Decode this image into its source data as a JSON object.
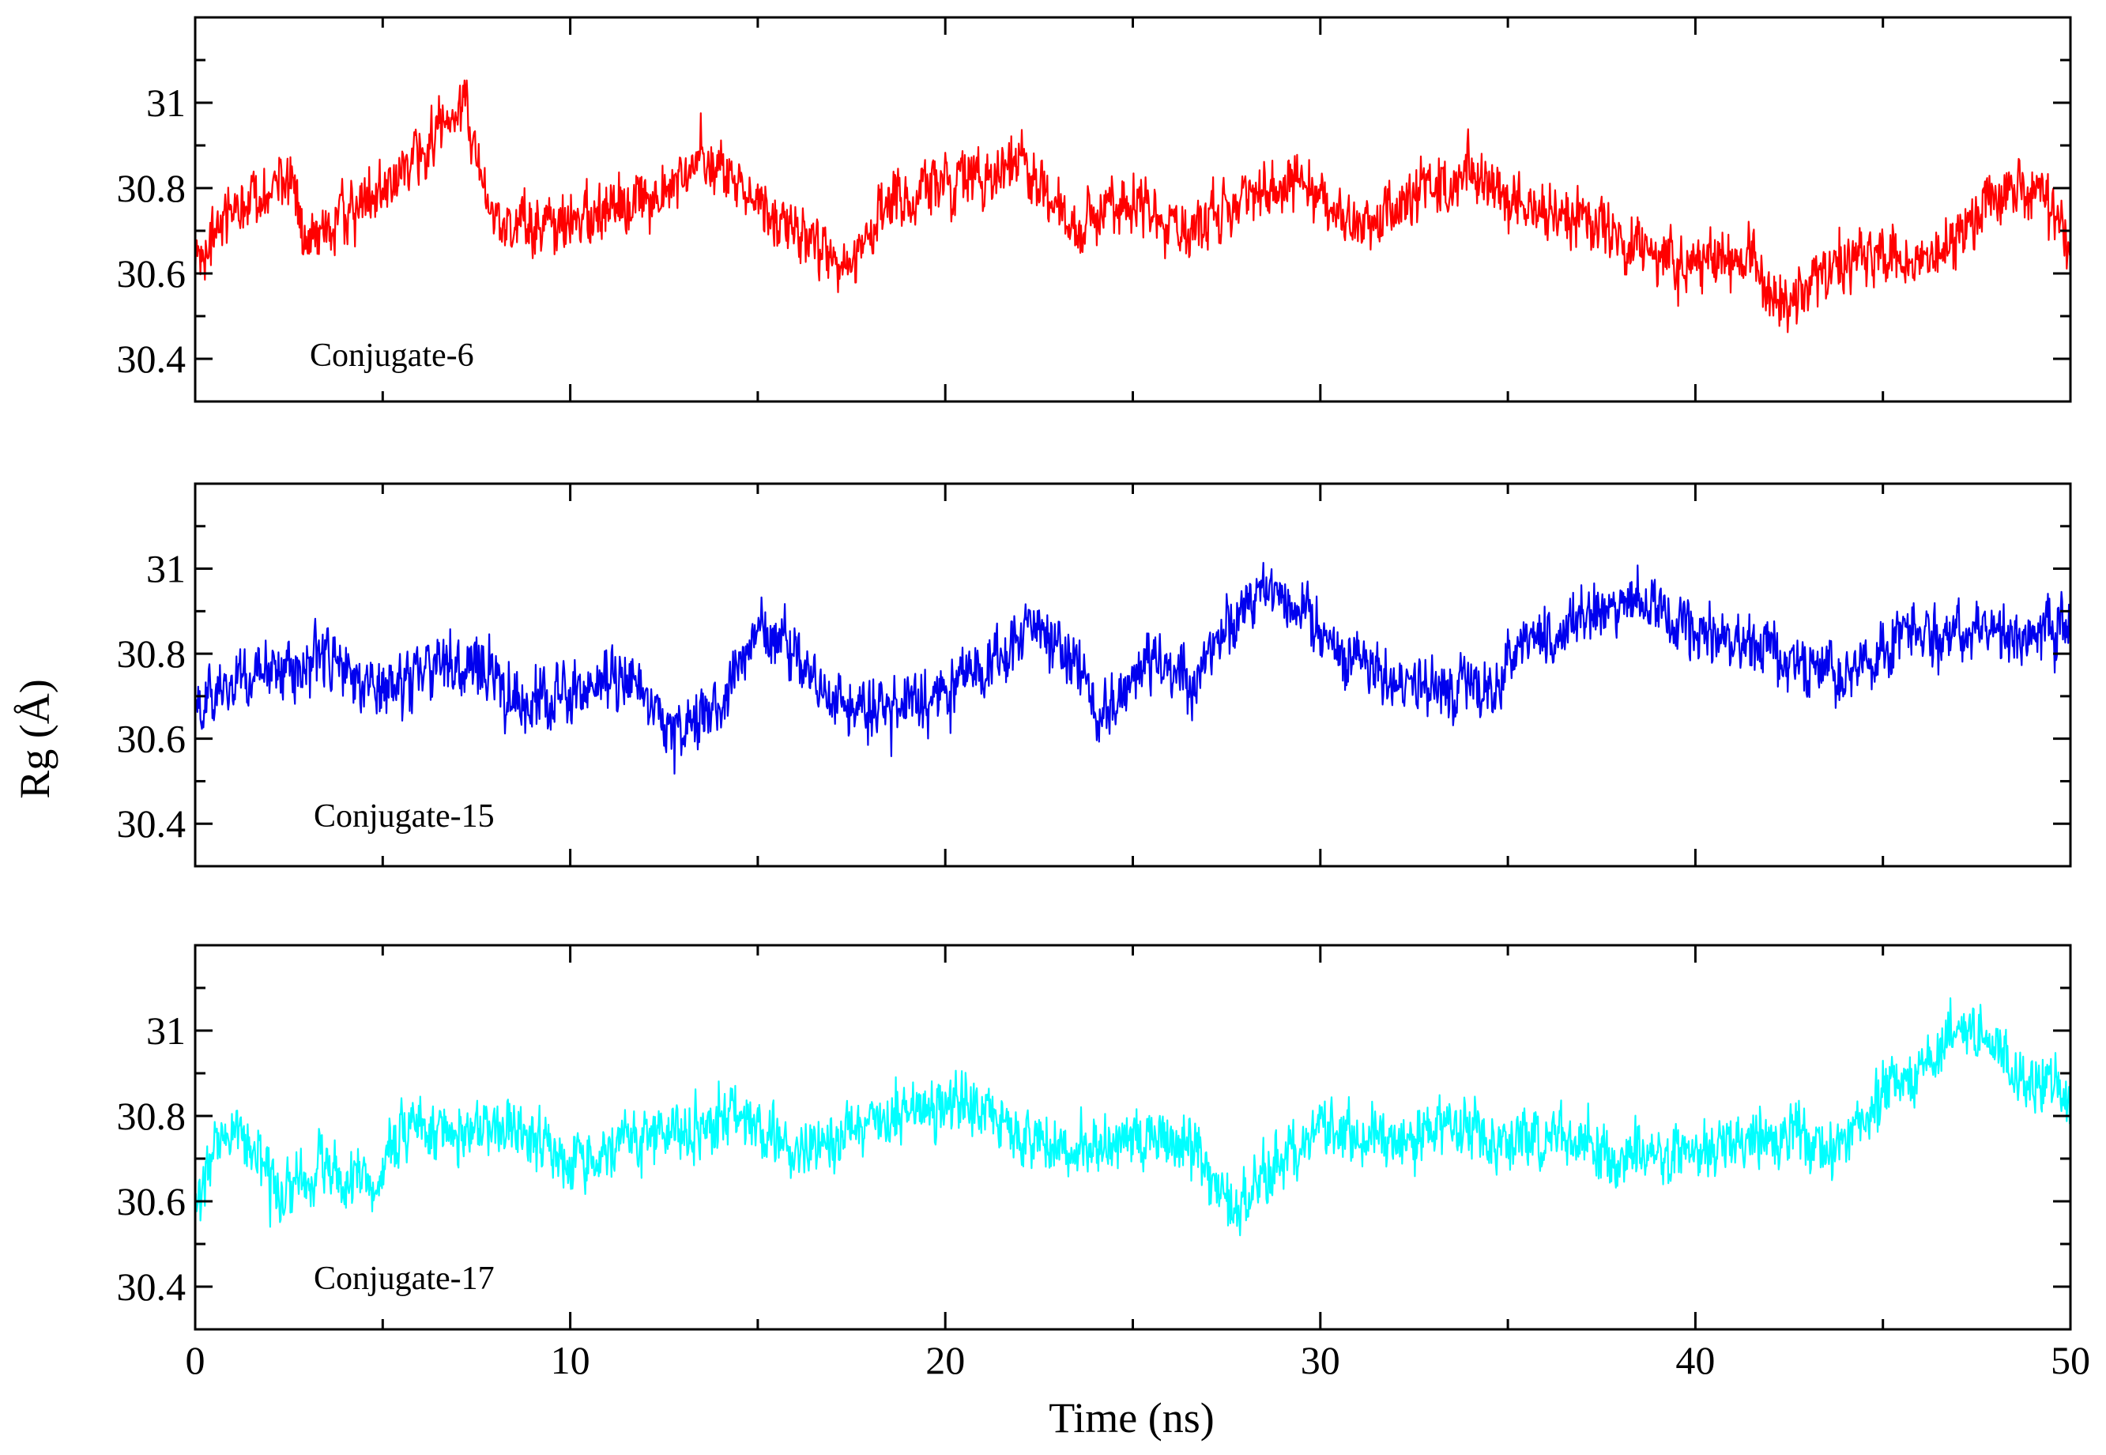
{
  "chart_data": {
    "type": "line",
    "xlabel": "Time (ns)",
    "ylabel": "Rg (Å)",
    "xlim": [
      0,
      50
    ],
    "ylim": [
      30.3,
      31.2
    ],
    "x_ticks": [
      "0",
      "10",
      "20",
      "30",
      "40",
      "50"
    ],
    "y_ticks": [
      "30.4",
      "30.6",
      "30.8",
      "31"
    ],
    "x_tick_values": [
      0,
      10,
      20,
      30,
      40,
      50
    ],
    "y_tick_values": [
      30.4,
      30.6,
      30.8,
      31.0
    ],
    "panels": [
      {
        "name": "Conjugate-6",
        "label": "Conjugate-6",
        "color": "#ff0000",
        "seed": 6,
        "noise": 0.06,
        "series": [
          {
            "t": 0,
            "v": 30.62
          },
          {
            "t": 0.5,
            "v": 30.7
          },
          {
            "t": 1.5,
            "v": 30.78
          },
          {
            "t": 2.5,
            "v": 30.82
          },
          {
            "t": 3.0,
            "v": 30.66
          },
          {
            "t": 4.0,
            "v": 30.74
          },
          {
            "t": 5.5,
            "v": 30.82
          },
          {
            "t": 6.5,
            "v": 30.95
          },
          {
            "t": 7.2,
            "v": 30.98
          },
          {
            "t": 8.0,
            "v": 30.72
          },
          {
            "t": 9.5,
            "v": 30.7
          },
          {
            "t": 11.0,
            "v": 30.76
          },
          {
            "t": 12.5,
            "v": 30.78
          },
          {
            "t": 13.5,
            "v": 30.88
          },
          {
            "t": 15.0,
            "v": 30.76
          },
          {
            "t": 16.5,
            "v": 30.68
          },
          {
            "t": 17.3,
            "v": 30.6
          },
          {
            "t": 18.5,
            "v": 30.78
          },
          {
            "t": 20.0,
            "v": 30.8
          },
          {
            "t": 22.0,
            "v": 30.86
          },
          {
            "t": 23.5,
            "v": 30.7
          },
          {
            "t": 25.0,
            "v": 30.78
          },
          {
            "t": 26.5,
            "v": 30.68
          },
          {
            "t": 28.0,
            "v": 30.78
          },
          {
            "t": 29.5,
            "v": 30.82
          },
          {
            "t": 31.0,
            "v": 30.7
          },
          {
            "t": 32.5,
            "v": 30.78
          },
          {
            "t": 34.0,
            "v": 30.84
          },
          {
            "t": 35.5,
            "v": 30.74
          },
          {
            "t": 37.0,
            "v": 30.72
          },
          {
            "t": 38.5,
            "v": 30.66
          },
          {
            "t": 40.0,
            "v": 30.62
          },
          {
            "t": 41.5,
            "v": 30.64
          },
          {
            "t": 42.2,
            "v": 30.52
          },
          {
            "t": 43.5,
            "v": 30.6
          },
          {
            "t": 45.0,
            "v": 30.64
          },
          {
            "t": 46.5,
            "v": 30.64
          },
          {
            "t": 48.0,
            "v": 30.78
          },
          {
            "t": 49.3,
            "v": 30.8
          },
          {
            "t": 50.0,
            "v": 30.64
          }
        ]
      },
      {
        "name": "Conjugate-15",
        "label": "Conjugate-15",
        "color": "#0000ee",
        "seed": 15,
        "noise": 0.06,
        "series": [
          {
            "t": 0,
            "v": 30.68
          },
          {
            "t": 1.0,
            "v": 30.72
          },
          {
            "t": 2.5,
            "v": 30.76
          },
          {
            "t": 3.5,
            "v": 30.8
          },
          {
            "t": 5.0,
            "v": 30.7
          },
          {
            "t": 6.5,
            "v": 30.78
          },
          {
            "t": 7.5,
            "v": 30.76
          },
          {
            "t": 9.0,
            "v": 30.68
          },
          {
            "t": 10.5,
            "v": 30.72
          },
          {
            "t": 11.5,
            "v": 30.74
          },
          {
            "t": 12.8,
            "v": 30.62
          },
          {
            "t": 14.0,
            "v": 30.68
          },
          {
            "t": 15.0,
            "v": 30.84
          },
          {
            "t": 16.0,
            "v": 30.8
          },
          {
            "t": 17.0,
            "v": 30.7
          },
          {
            "t": 18.5,
            "v": 30.66
          },
          {
            "t": 20.0,
            "v": 30.72
          },
          {
            "t": 21.5,
            "v": 30.8
          },
          {
            "t": 22.5,
            "v": 30.86
          },
          {
            "t": 23.5,
            "v": 30.78
          },
          {
            "t": 24.0,
            "v": 30.66
          },
          {
            "t": 25.5,
            "v": 30.78
          },
          {
            "t": 26.5,
            "v": 30.74
          },
          {
            "t": 27.5,
            "v": 30.86
          },
          {
            "t": 28.5,
            "v": 30.96
          },
          {
            "t": 29.5,
            "v": 30.9
          },
          {
            "t": 30.5,
            "v": 30.8
          },
          {
            "t": 32.0,
            "v": 30.74
          },
          {
            "t": 33.5,
            "v": 30.72
          },
          {
            "t": 34.5,
            "v": 30.7
          },
          {
            "t": 35.5,
            "v": 30.82
          },
          {
            "t": 37.0,
            "v": 30.88
          },
          {
            "t": 38.5,
            "v": 30.94
          },
          {
            "t": 39.5,
            "v": 30.86
          },
          {
            "t": 41.0,
            "v": 30.84
          },
          {
            "t": 42.5,
            "v": 30.78
          },
          {
            "t": 44.0,
            "v": 30.74
          },
          {
            "t": 45.5,
            "v": 30.84
          },
          {
            "t": 47.0,
            "v": 30.86
          },
          {
            "t": 48.5,
            "v": 30.84
          },
          {
            "t": 50.0,
            "v": 30.86
          }
        ]
      },
      {
        "name": "Conjugate-17",
        "label": "Conjugate-17",
        "color": "#00ffff",
        "seed": 17,
        "noise": 0.06,
        "series": [
          {
            "t": 0,
            "v": 30.58
          },
          {
            "t": 0.7,
            "v": 30.76
          },
          {
            "t": 1.5,
            "v": 30.74
          },
          {
            "t": 2.2,
            "v": 30.62
          },
          {
            "t": 3.5,
            "v": 30.68
          },
          {
            "t": 4.8,
            "v": 30.62
          },
          {
            "t": 5.5,
            "v": 30.78
          },
          {
            "t": 7.0,
            "v": 30.76
          },
          {
            "t": 8.5,
            "v": 30.78
          },
          {
            "t": 10.0,
            "v": 30.68
          },
          {
            "t": 11.5,
            "v": 30.74
          },
          {
            "t": 13.0,
            "v": 30.76
          },
          {
            "t": 14.5,
            "v": 30.8
          },
          {
            "t": 16.0,
            "v": 30.72
          },
          {
            "t": 17.5,
            "v": 30.76
          },
          {
            "t": 19.0,
            "v": 30.8
          },
          {
            "t": 20.5,
            "v": 30.84
          },
          {
            "t": 22.0,
            "v": 30.74
          },
          {
            "t": 23.5,
            "v": 30.72
          },
          {
            "t": 25.0,
            "v": 30.76
          },
          {
            "t": 26.5,
            "v": 30.74
          },
          {
            "t": 27.8,
            "v": 30.58
          },
          {
            "t": 29.0,
            "v": 30.72
          },
          {
            "t": 30.5,
            "v": 30.78
          },
          {
            "t": 32.0,
            "v": 30.74
          },
          {
            "t": 33.5,
            "v": 30.78
          },
          {
            "t": 35.0,
            "v": 30.74
          },
          {
            "t": 36.5,
            "v": 30.76
          },
          {
            "t": 38.0,
            "v": 30.7
          },
          {
            "t": 39.5,
            "v": 30.72
          },
          {
            "t": 41.0,
            "v": 30.74
          },
          {
            "t": 42.5,
            "v": 30.76
          },
          {
            "t": 44.0,
            "v": 30.7
          },
          {
            "t": 45.0,
            "v": 30.86
          },
          {
            "t": 46.0,
            "v": 30.9
          },
          {
            "t": 47.0,
            "v": 31.0
          },
          {
            "t": 48.0,
            "v": 30.98
          },
          {
            "t": 48.8,
            "v": 30.88
          },
          {
            "t": 49.5,
            "v": 30.86
          },
          {
            "t": 50.0,
            "v": 30.8
          }
        ]
      }
    ]
  }
}
